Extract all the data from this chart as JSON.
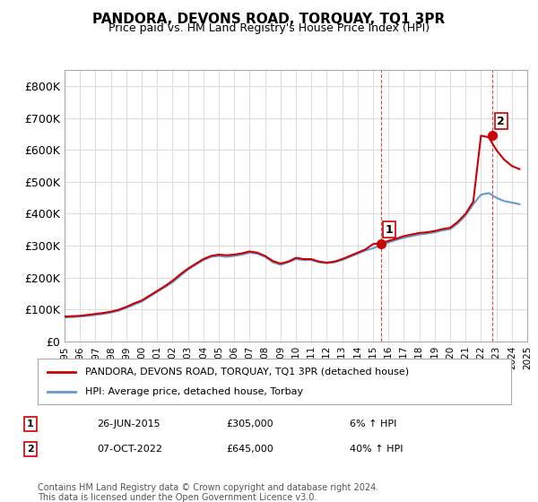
{
  "title": "PANDORA, DEVONS ROAD, TORQUAY, TQ1 3PR",
  "subtitle": "Price paid vs. HM Land Registry's House Price Index (HPI)",
  "ylabel": "",
  "ylim": [
    0,
    850000
  ],
  "yticks": [
    0,
    100000,
    200000,
    300000,
    400000,
    500000,
    600000,
    700000,
    800000
  ],
  "ytick_labels": [
    "£0",
    "£100K",
    "£200K",
    "£300K",
    "£400K",
    "£500K",
    "£600K",
    "£700K",
    "£800K"
  ],
  "hpi_color": "#6699cc",
  "price_color": "#cc0000",
  "sale_color": "#cc0000",
  "marker1_color": "#cc0000",
  "marker2_color": "#cc0000",
  "legend_box_color": "#cc0000",
  "legend_hpi_color": "#6699cc",
  "annotation_color": "#cc0000",
  "background_color": "#ffffff",
  "grid_color": "#dddddd",
  "hpi_years": [
    1995,
    1995.5,
    1996,
    1996.5,
    1997,
    1997.5,
    1998,
    1998.5,
    1999,
    1999.5,
    2000,
    2000.5,
    2001,
    2001.5,
    2002,
    2002.5,
    2003,
    2003.5,
    2004,
    2004.5,
    2005,
    2005.5,
    2006,
    2006.5,
    2007,
    2007.5,
    2008,
    2008.5,
    2009,
    2009.5,
    2010,
    2010.5,
    2011,
    2011.5,
    2012,
    2012.5,
    2013,
    2013.5,
    2014,
    2014.5,
    2015,
    2015.5,
    2016,
    2016.5,
    2017,
    2017.5,
    2018,
    2018.5,
    2019,
    2019.5,
    2020,
    2020.5,
    2021,
    2021.5,
    2022,
    2022.5,
    2023,
    2023.5,
    2024,
    2024.5
  ],
  "hpi_values": [
    75000,
    76000,
    78000,
    80000,
    83000,
    86000,
    90000,
    96000,
    105000,
    115000,
    125000,
    140000,
    155000,
    170000,
    185000,
    205000,
    225000,
    240000,
    255000,
    265000,
    268000,
    265000,
    268000,
    272000,
    278000,
    275000,
    265000,
    248000,
    240000,
    248000,
    258000,
    255000,
    255000,
    248000,
    245000,
    248000,
    255000,
    265000,
    275000,
    285000,
    292000,
    300000,
    310000,
    318000,
    325000,
    330000,
    335000,
    338000,
    342000,
    348000,
    352000,
    370000,
    395000,
    430000,
    460000,
    465000,
    450000,
    440000,
    435000,
    430000
  ],
  "price_years": [
    1995,
    1995.5,
    1996,
    1996.5,
    1997,
    1997.5,
    1998,
    1998.5,
    1999,
    1999.5,
    2000,
    2000.5,
    2001,
    2001.5,
    2002,
    2002.5,
    2003,
    2003.5,
    2004,
    2004.5,
    2005,
    2005.5,
    2006,
    2006.5,
    2007,
    2007.5,
    2008,
    2008.5,
    2009,
    2009.5,
    2010,
    2010.5,
    2011,
    2011.5,
    2012,
    2012.5,
    2013,
    2013.5,
    2014,
    2014.5,
    2015,
    2015.5,
    2016,
    2016.5,
    2017,
    2017.5,
    2018,
    2018.5,
    2019,
    2019.5,
    2020,
    2020.5,
    2021,
    2021.5,
    2022,
    2022.5,
    2023,
    2023.5,
    2024,
    2024.5
  ],
  "price_values": [
    78000,
    79000,
    80000,
    83000,
    86000,
    89000,
    93000,
    99000,
    108000,
    119000,
    128000,
    143000,
    158000,
    173000,
    190000,
    210000,
    228000,
    243000,
    258000,
    268000,
    272000,
    270000,
    272000,
    276000,
    282000,
    278000,
    268000,
    252000,
    244000,
    250000,
    262000,
    258000,
    258000,
    250000,
    247000,
    250000,
    258000,
    268000,
    278000,
    288000,
    305000,
    308000,
    315000,
    322000,
    330000,
    335000,
    340000,
    342000,
    346000,
    352000,
    356000,
    375000,
    400000,
    438000,
    645000,
    640000,
    600000,
    570000,
    550000,
    540000
  ],
  "sale1_x": 2015.5,
  "sale1_y": 305000,
  "sale1_label": "1",
  "sale2_x": 2022.75,
  "sale2_y": 645000,
  "sale2_label": "2",
  "vline1_x": 2015.5,
  "vline2_x": 2022.75,
  "table_data": [
    [
      "1",
      "26-JUN-2015",
      "£305,000",
      "6% ↑ HPI"
    ],
    [
      "2",
      "07-OCT-2022",
      "£645,000",
      "40% ↑ HPI"
    ]
  ],
  "legend_line1": "PANDORA, DEVONS ROAD, TORQUAY, TQ1 3PR (detached house)",
  "legend_line2": "HPI: Average price, detached house, Torbay",
  "footnote": "Contains HM Land Registry data © Crown copyright and database right 2024.\nThis data is licensed under the Open Government Licence v3.0.",
  "xmin": 1995,
  "xmax": 2025
}
